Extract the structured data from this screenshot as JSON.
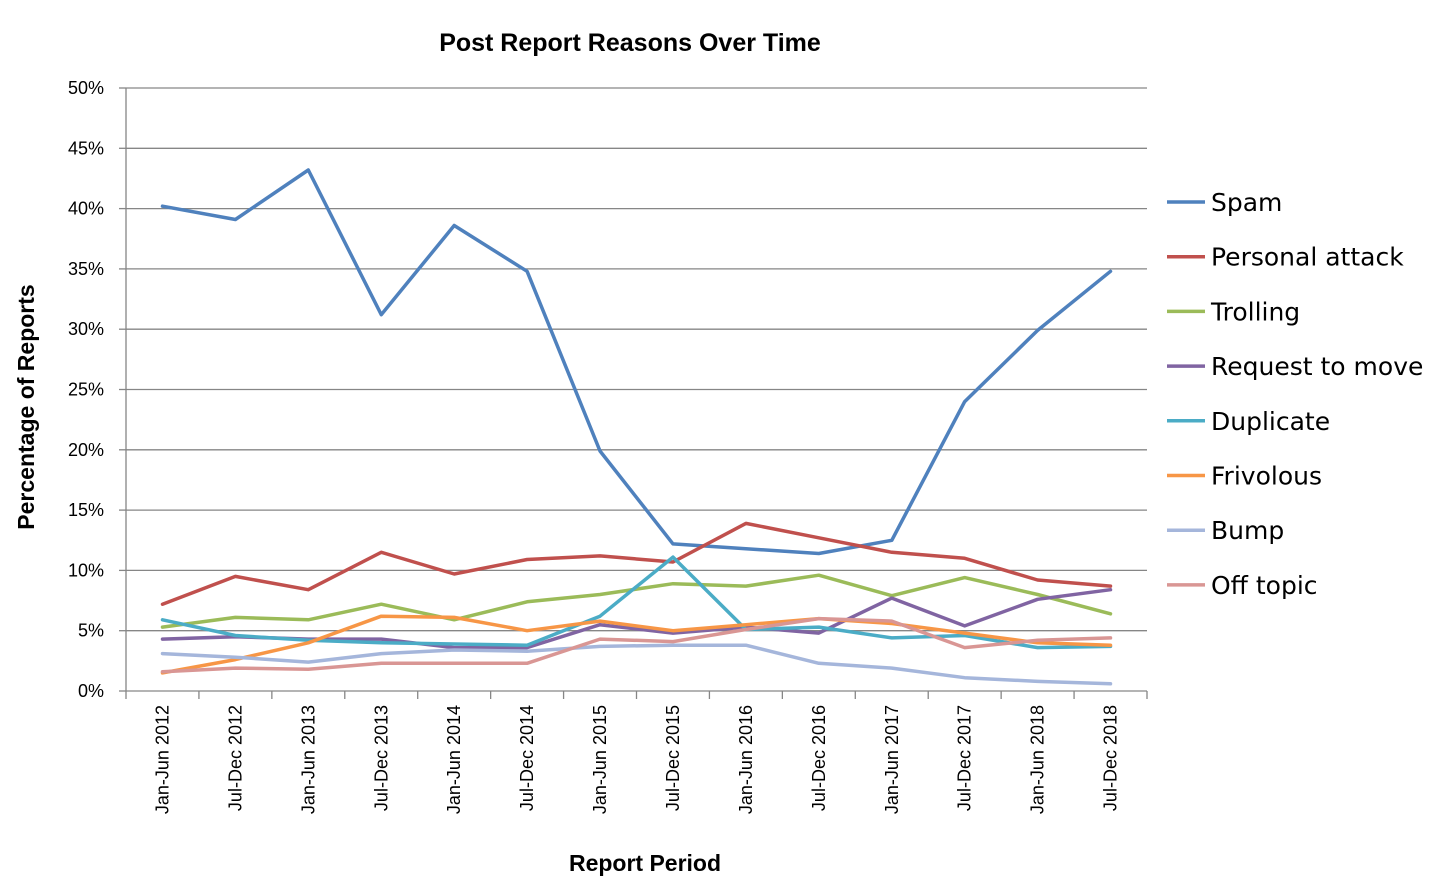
{
  "chart_data": {
    "type": "line",
    "title": "Post Report Reasons Over Time",
    "xlabel": "Report Period",
    "ylabel": "Percentage of Reports",
    "ylim": [
      0,
      50
    ],
    "yticks": [
      "0%",
      "5%",
      "10%",
      "15%",
      "20%",
      "25%",
      "30%",
      "35%",
      "40%",
      "45%",
      "50%"
    ],
    "grid": true,
    "legend_position": "right",
    "categories": [
      "Jan-Jun 2012",
      "Jul-Dec 2012",
      "Jan-Jun 2013",
      "Jul-Dec 2013",
      "Jan-Jun 2014",
      "Jul-Dec 2014",
      "Jan-Jun 2015",
      "Jul-Dec 2015",
      "Jan-Jun 2016",
      "Jul-Dec 2016",
      "Jan-Jun 2017",
      "Jul-Dec 2017",
      "Jan-Jun 2018",
      "Jul-Dec 2018"
    ],
    "series": [
      {
        "name": "Spam",
        "color": "#4F81BD",
        "values": [
          40.2,
          39.1,
          43.2,
          31.2,
          38.6,
          34.8,
          19.9,
          12.2,
          11.8,
          11.4,
          12.5,
          24.0,
          29.9,
          34.8
        ]
      },
      {
        "name": "Personal attack",
        "color": "#C0504D",
        "values": [
          7.2,
          9.5,
          8.4,
          11.5,
          9.7,
          10.9,
          11.2,
          10.7,
          13.9,
          12.7,
          11.5,
          11.0,
          9.2,
          8.7
        ]
      },
      {
        "name": "Trolling",
        "color": "#9BBB59",
        "values": [
          5.3,
          6.1,
          5.9,
          7.2,
          5.9,
          7.4,
          8.0,
          8.9,
          8.7,
          9.6,
          7.9,
          9.4,
          8.0,
          6.4
        ]
      },
      {
        "name": "Request to move",
        "color": "#8064A2",
        "values": [
          4.3,
          4.5,
          4.3,
          4.3,
          3.6,
          3.6,
          5.5,
          4.8,
          5.3,
          4.8,
          7.7,
          5.4,
          7.6,
          8.4
        ]
      },
      {
        "name": "Duplicate",
        "color": "#4BACC6",
        "values": [
          5.9,
          4.6,
          4.2,
          4.0,
          3.9,
          3.8,
          6.2,
          11.1,
          5.1,
          5.3,
          4.4,
          4.6,
          3.6,
          3.7
        ]
      },
      {
        "name": "Frivolous",
        "color": "#F79646",
        "values": [
          1.5,
          2.6,
          4.0,
          6.2,
          6.1,
          5.0,
          5.8,
          5.0,
          5.5,
          6.0,
          5.6,
          4.8,
          4.0,
          3.8
        ]
      },
      {
        "name": "Bump",
        "color": "#A5B6DB",
        "values": [
          3.1,
          2.8,
          2.4,
          3.1,
          3.4,
          3.3,
          3.7,
          3.8,
          3.8,
          2.3,
          1.9,
          1.1,
          0.8,
          0.6
        ]
      },
      {
        "name": "Off topic",
        "color": "#D99694",
        "values": [
          1.6,
          1.9,
          1.8,
          2.3,
          2.3,
          2.3,
          4.3,
          4.1,
          5.1,
          6.0,
          5.8,
          3.6,
          4.2,
          4.4
        ]
      }
    ]
  }
}
